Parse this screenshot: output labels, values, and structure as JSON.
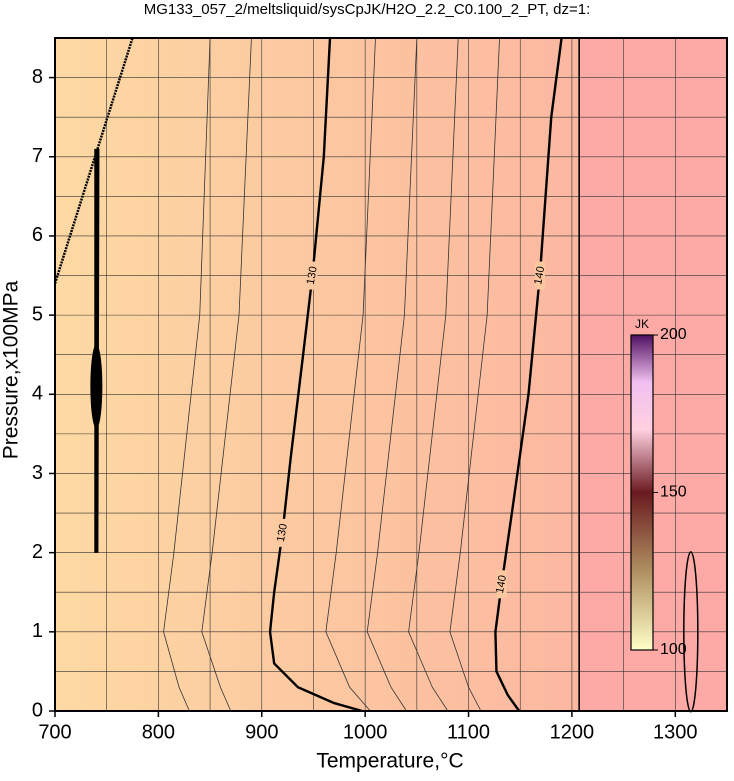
{
  "chart_data": {
    "type": "contour",
    "title": "MG133_057_2/meltsliquid/sysCpJK/H2O_2.2_C0.100_2_PT, dz=1:",
    "x_label": "Temperature,°C",
    "y_label": "Pressure,x100MPa",
    "xlim": [
      700,
      1350
    ],
    "ylim": [
      0,
      8.5
    ],
    "xticks": [
      700,
      800,
      900,
      1000,
      1100,
      1200,
      1300
    ],
    "yticks": [
      0,
      1,
      2,
      3,
      4,
      5,
      6,
      7,
      8
    ],
    "xgrid": [
      750,
      800,
      850,
      900,
      950,
      1000,
      1050,
      1100,
      1150,
      1200,
      1250,
      1300
    ],
    "ygrid": [
      0.5,
      1,
      1.5,
      2,
      2.5,
      3,
      3.5,
      4,
      4.5,
      5,
      5.5,
      6,
      6.5,
      7,
      7.5,
      8
    ],
    "series": [
      {
        "level": 130,
        "color": "#000000",
        "x": [
          966,
          960,
          949,
          940,
          928,
          920,
          912,
          908,
          912,
          935,
          970,
          997
        ],
        "y": [
          8.5,
          7,
          5.5,
          4.5,
          3.2,
          2.25,
          1.5,
          1.0,
          0.6,
          0.3,
          0.1,
          0
        ]
      },
      {
        "level": 140,
        "color": "#000000",
        "x": [
          1190,
          1180,
          1169,
          1158,
          1143,
          1132,
          1126,
          1127,
          1138,
          1149
        ],
        "y": [
          8.5,
          7.5,
          5.5,
          4,
          2.6,
          1.6,
          1.0,
          0.5,
          0.2,
          0
        ]
      },
      {
        "color": "#333333",
        "x": [
          850,
          840,
          815,
          805,
          820,
          830
        ],
        "y": [
          8.5,
          5,
          2,
          1,
          0.3,
          0
        ]
      },
      {
        "color": "#333333",
        "x": [
          890,
          878,
          852,
          842,
          860,
          870
        ],
        "y": [
          8.5,
          5,
          2,
          1,
          0.3,
          0
        ]
      },
      {
        "color": "#333333",
        "x": [
          1010,
          998,
          972,
          962,
          985,
          1005
        ],
        "y": [
          8.5,
          5,
          2,
          1,
          0.3,
          0
        ]
      },
      {
        "color": "#333333",
        "x": [
          1050,
          1038,
          1012,
          1002,
          1025,
          1040
        ],
        "y": [
          8.5,
          5,
          2,
          1,
          0.3,
          0
        ]
      },
      {
        "color": "#333333",
        "x": [
          1090,
          1078,
          1052,
          1042,
          1065,
          1080
        ],
        "y": [
          8.5,
          5,
          2,
          1,
          0.3,
          0
        ]
      },
      {
        "color": "#333333",
        "x": [
          1130,
          1118,
          1092,
          1082,
          1100,
          1112
        ],
        "y": [
          8.5,
          5,
          2,
          1,
          0.3,
          0
        ]
      }
    ],
    "boundary_x": 1207,
    "colorbar": {
      "label": "JK",
      "lim": [
        100,
        200
      ],
      "ticks": [
        100,
        150,
        200
      ]
    }
  }
}
